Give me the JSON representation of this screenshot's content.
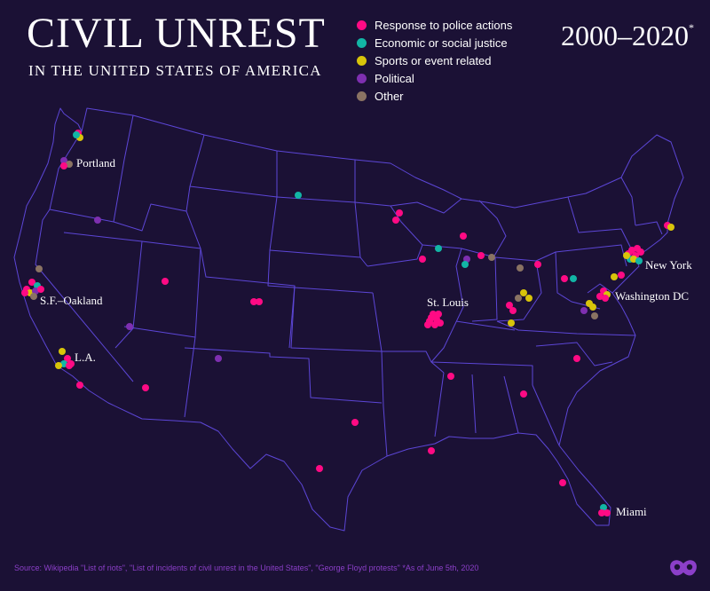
{
  "header": {
    "title": "CIVIL UNREST",
    "subtitle": "IN THE UNITED STATES OF AMERICA",
    "years": "2000–2020",
    "years_marker": "*"
  },
  "legend": [
    {
      "label": "Response to police actions",
      "color": "#ff0a84"
    },
    {
      "label": "Economic or social justice",
      "color": "#12b5a5"
    },
    {
      "label": "Sports or event related",
      "color": "#d8c40a"
    },
    {
      "label": "Political",
      "color": "#7e2fb0"
    },
    {
      "label": "Other",
      "color": "#8a7363"
    }
  ],
  "map": {
    "background": "#1b1135",
    "border_color": "#5c46d6",
    "cities": [
      {
        "id": "portland",
        "label": "Portland"
      },
      {
        "id": "sf",
        "label": "S.F.–Oakland"
      },
      {
        "id": "la",
        "label": "L.A."
      },
      {
        "id": "stlouis",
        "label": "St. Louis"
      },
      {
        "id": "newyork",
        "label": "New York"
      },
      {
        "id": "dc",
        "label": "Washington DC"
      },
      {
        "id": "miami",
        "label": "Miami"
      }
    ]
  },
  "footer": {
    "source": "Source: Wikipedia \"List of riots\", \"List of incidents of civil unrest in the United States\", \"George Floyd protests\"   *As of June 5th, 2020",
    "logo": "visual-capitalist-logo-icon"
  }
}
